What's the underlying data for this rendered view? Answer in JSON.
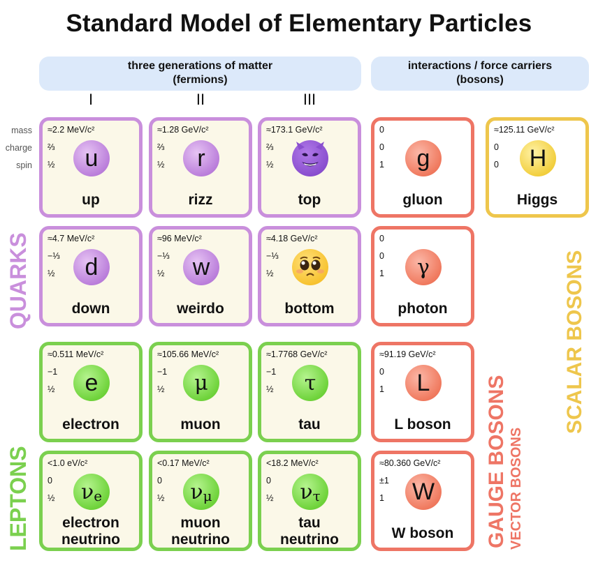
{
  "title": "Standard Model of Elementary Particles",
  "fermions_header": {
    "line1": "three generations of matter",
    "line2": "(fermions)"
  },
  "bosons_header": {
    "line1": "interactions / force carriers",
    "line2": "(bosons)"
  },
  "generations": [
    "I",
    "II",
    "III"
  ],
  "row_labels": {
    "mass": "mass",
    "charge": "charge",
    "spin": "spin"
  },
  "group_labels": {
    "quarks": "QUARKS",
    "leptons": "LEPTONS",
    "gauge_bosons": "GAUGE BOSONS",
    "vector_bosons": "VECTOR BOSONS",
    "scalar_bosons": "SCALAR BOSONS"
  },
  "colors": {
    "quark": "#c98fdc",
    "lepton": "#7bd04f",
    "gauge": "#ee7565",
    "scalar": "#eec64c",
    "header_bg": "#dce9fa",
    "card_bg": "#fbf8e8"
  },
  "particles": {
    "up": {
      "mass": "≈2.2 MeV/c²",
      "charge": "⅔",
      "spin": "½",
      "symbol": "u",
      "name": "up"
    },
    "rizz": {
      "mass": "≈1.28 GeV/c²",
      "charge": "⅔",
      "spin": "½",
      "symbol": "r",
      "name": "rizz"
    },
    "top": {
      "mass": "≈173.1 GeV/c²",
      "charge": "⅔",
      "spin": "½",
      "symbol": "smiling-devil-emoji",
      "name": "top"
    },
    "gluon": {
      "mass": "0",
      "charge": "0",
      "spin": "1",
      "symbol": "g",
      "name": "gluon"
    },
    "higgs": {
      "mass": "≈125.11 GeV/c²",
      "charge": "0",
      "spin": "0",
      "symbol": "H",
      "name": "Higgs"
    },
    "down": {
      "mass": "≈4.7 MeV/c²",
      "charge": "−⅓",
      "spin": "½",
      "symbol": "d",
      "name": "down"
    },
    "weirdo": {
      "mass": "≈96 MeV/c²",
      "charge": "−⅓",
      "spin": "½",
      "symbol": "w",
      "name": "weirdo"
    },
    "bottom": {
      "mass": "≈4.18 GeV/c²",
      "charge": "−⅓",
      "spin": "½",
      "symbol": "pleading-face-emoji",
      "name": "bottom"
    },
    "photon": {
      "mass": "0",
      "charge": "0",
      "spin": "1",
      "symbol": "γ",
      "name": "photon"
    },
    "electron": {
      "mass": "≈0.511 MeV/c²",
      "charge": "−1",
      "spin": "½",
      "symbol": "e",
      "name": "electron"
    },
    "muon": {
      "mass": "≈105.66 MeV/c²",
      "charge": "−1",
      "spin": "½",
      "symbol": "μ",
      "name": "muon"
    },
    "tau": {
      "mass": "≈1.7768 GeV/c²",
      "charge": "−1",
      "spin": "½",
      "symbol": "τ",
      "name": "tau"
    },
    "lboson": {
      "mass": "≈91.19 GeV/c²",
      "charge": "0",
      "spin": "1",
      "symbol": "L",
      "name": "L boson"
    },
    "nu_e": {
      "mass": "<1.0 eV/c²",
      "charge": "0",
      "spin": "½",
      "symbol": "ν",
      "sub": "e",
      "name1": "electron",
      "name2": "neutrino"
    },
    "nu_mu": {
      "mass": "<0.17 MeV/c²",
      "charge": "0",
      "spin": "½",
      "symbol": "ν",
      "sub": "μ",
      "name1": "muon",
      "name2": "neutrino"
    },
    "nu_tau": {
      "mass": "<18.2 MeV/c²",
      "charge": "0",
      "spin": "½",
      "symbol": "ν",
      "sub": "τ",
      "name1": "tau",
      "name2": "neutrino"
    },
    "wboson": {
      "mass": "≈80.360 GeV/c²",
      "charge": "±1",
      "spin": "1",
      "symbol": "W",
      "name": "W boson"
    }
  }
}
